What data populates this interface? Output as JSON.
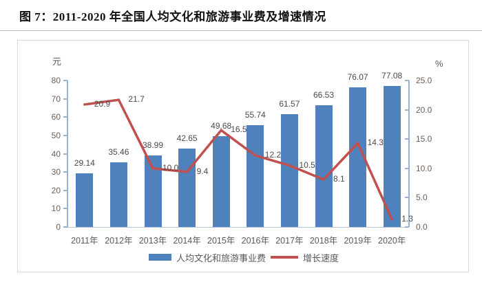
{
  "title": "图 7：2011-2020 年全国人均文化和旅游事业费及增速情况",
  "chart_data": {
    "type": "bar+line",
    "title": "图 7：2011-2020 年全国人均文化和旅游事业费及增速情况",
    "categories": [
      "2011年",
      "2012年",
      "2013年",
      "2014年",
      "2015年",
      "2016年",
      "2017年",
      "2018年",
      "2019年",
      "2020年"
    ],
    "series": [
      {
        "name": "人均文化和旅游事业费",
        "type": "bar",
        "axis": "left",
        "color": "#4f81bd",
        "values": [
          29.14,
          35.46,
          38.99,
          42.65,
          49.68,
          55.74,
          61.57,
          66.53,
          76.07,
          77.08
        ],
        "labels": [
          "29.14",
          "35.46",
          "38.99",
          "42.65",
          "49.68",
          "55.74",
          "61.57",
          "66.53",
          "76.07",
          "77.08"
        ]
      },
      {
        "name": "增长速度",
        "type": "line",
        "axis": "right",
        "color": "#c0504d",
        "values": [
          20.9,
          21.7,
          10.0,
          9.4,
          16.5,
          12.2,
          10.5,
          8.1,
          14.3,
          1.3
        ],
        "labels": [
          "20.9",
          "21.7",
          "10.0",
          "9.4",
          "16.5",
          "12.2",
          "10.5",
          "8.1",
          "14.3",
          "1.3"
        ]
      }
    ],
    "left_axis": {
      "unit": "元",
      "min": 0,
      "max": 80,
      "step": 10,
      "ticks": [
        "0",
        "10",
        "20",
        "30",
        "40",
        "50",
        "60",
        "70",
        "80"
      ]
    },
    "right_axis": {
      "unit": "%",
      "min": 0,
      "max": 25,
      "step": 5,
      "ticks": [
        "0.0",
        "5.0",
        "10.0",
        "15.0",
        "20.0",
        "25.0"
      ]
    },
    "legend_position": "bottom",
    "grid": false
  }
}
